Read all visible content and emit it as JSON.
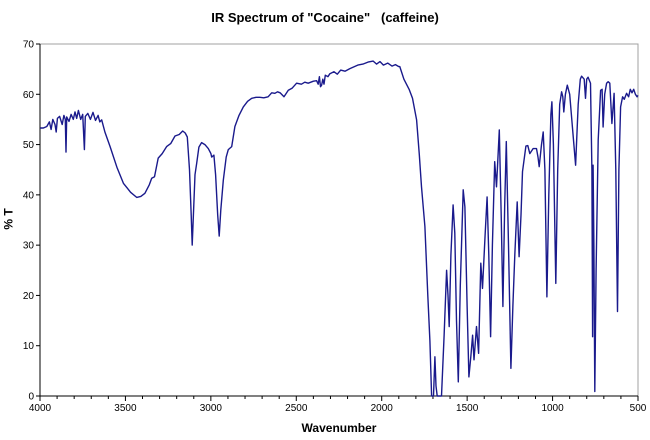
{
  "chart_data": {
    "type": "line",
    "title": "IR Spectrum of \"Cocaine\"   (caffeine)",
    "xlabel": "Wavenumber",
    "ylabel": "% T",
    "xlim": [
      4000,
      500
    ],
    "ylim": [
      0,
      70
    ],
    "x_reversed": true,
    "grid": false,
    "legend": "none",
    "xticks": [
      "4000",
      "3500",
      "3000",
      "2500",
      "2000",
      "1500",
      "1000",
      "500"
    ],
    "yticks": [
      "0",
      "10",
      "20",
      "30",
      "40",
      "50",
      "60",
      "70"
    ],
    "line_color": "#1a1a8c",
    "series": [
      {
        "points": [
          [
            4000,
            53.3
          ],
          [
            3980,
            53.3
          ],
          [
            3960,
            53.6
          ],
          [
            3945,
            54.5
          ],
          [
            3935,
            53
          ],
          [
            3925,
            55
          ],
          [
            3912,
            54
          ],
          [
            3905,
            52.5
          ],
          [
            3898,
            55.2
          ],
          [
            3885,
            55.6
          ],
          [
            3870,
            54
          ],
          [
            3860,
            55.8
          ],
          [
            3852,
            55
          ],
          [
            3848,
            48.5
          ],
          [
            3844,
            55.5
          ],
          [
            3830,
            54.6
          ],
          [
            3818,
            56
          ],
          [
            3805,
            55
          ],
          [
            3795,
            56.5
          ],
          [
            3785,
            55.2
          ],
          [
            3775,
            56.8
          ],
          [
            3762,
            55
          ],
          [
            3750,
            56
          ],
          [
            3740,
            49
          ],
          [
            3735,
            55.6
          ],
          [
            3720,
            56.2
          ],
          [
            3705,
            55
          ],
          [
            3690,
            56.4
          ],
          [
            3675,
            54.8
          ],
          [
            3660,
            55.8
          ],
          [
            3650,
            54.5
          ],
          [
            3639,
            54.9
          ],
          [
            3620,
            52.5
          ],
          [
            3590,
            49.6
          ],
          [
            3550,
            45.5
          ],
          [
            3512,
            42.3
          ],
          [
            3470,
            40.5
          ],
          [
            3434,
            39.5
          ],
          [
            3410,
            39.7
          ],
          [
            3386,
            40.3
          ],
          [
            3360,
            42
          ],
          [
            3346,
            43.3
          ],
          [
            3330,
            43.6
          ],
          [
            3308,
            47.3
          ],
          [
            3285,
            48.2
          ],
          [
            3259,
            49.6
          ],
          [
            3235,
            50.2
          ],
          [
            3210,
            51.7
          ],
          [
            3185,
            52
          ],
          [
            3165,
            52.7
          ],
          [
            3150,
            52.3
          ],
          [
            3138,
            51.5
          ],
          [
            3125,
            45
          ],
          [
            3115,
            36
          ],
          [
            3109,
            30
          ],
          [
            3102,
            36
          ],
          [
            3093,
            44
          ],
          [
            3083,
            46.3
          ],
          [
            3070,
            49.5
          ],
          [
            3054,
            50.4
          ],
          [
            3035,
            50
          ],
          [
            3015,
            49.2
          ],
          [
            3000,
            48.2
          ],
          [
            2995,
            47.5
          ],
          [
            2982,
            47.9
          ],
          [
            2972,
            44
          ],
          [
            2960,
            36
          ],
          [
            2951,
            31.8
          ],
          [
            2942,
            37
          ],
          [
            2927,
            42.9
          ],
          [
            2910,
            47.5
          ],
          [
            2898,
            49
          ],
          [
            2878,
            49.6
          ],
          [
            2859,
            53.6
          ],
          [
            2835,
            55.8
          ],
          [
            2810,
            57.5
          ],
          [
            2785,
            58.6
          ],
          [
            2761,
            59.2
          ],
          [
            2735,
            59.4
          ],
          [
            2713,
            59.4
          ],
          [
            2690,
            59.3
          ],
          [
            2665,
            59.5
          ],
          [
            2644,
            60.3
          ],
          [
            2625,
            60.2
          ],
          [
            2610,
            60.5
          ],
          [
            2595,
            60.3
          ],
          [
            2572,
            59.5
          ],
          [
            2547,
            60.8
          ],
          [
            2525,
            61.2
          ],
          [
            2498,
            62.2
          ],
          [
            2470,
            62
          ],
          [
            2450,
            62.4
          ],
          [
            2430,
            62.2
          ],
          [
            2400,
            62.6
          ],
          [
            2381,
            62.7
          ],
          [
            2372,
            62
          ],
          [
            2365,
            63.5
          ],
          [
            2358,
            61.5
          ],
          [
            2352,
            61.8
          ],
          [
            2345,
            63
          ],
          [
            2338,
            62
          ],
          [
            2330,
            63.8
          ],
          [
            2315,
            63.5
          ],
          [
            2303,
            64.1
          ],
          [
            2280,
            64.5
          ],
          [
            2260,
            64
          ],
          [
            2240,
            64.8
          ],
          [
            2215,
            64.6
          ],
          [
            2186,
            65.1
          ],
          [
            2160,
            65.5
          ],
          [
            2140,
            65.8
          ],
          [
            2110,
            66
          ],
          [
            2080,
            66.4
          ],
          [
            2050,
            66.6
          ],
          [
            2030,
            66
          ],
          [
            2010,
            66.5
          ],
          [
            1990,
            65.8
          ],
          [
            1965,
            66.2
          ],
          [
            1940,
            65.6
          ],
          [
            1920,
            65.9
          ],
          [
            1900,
            65.5
          ],
          [
            1894,
            65.5
          ],
          [
            1870,
            63
          ],
          [
            1840,
            61
          ],
          [
            1820,
            59.2
          ],
          [
            1796,
            54.9
          ],
          [
            1780,
            48
          ],
          [
            1767,
            41.6
          ],
          [
            1747,
            33.7
          ],
          [
            1730,
            20
          ],
          [
            1718,
            11
          ],
          [
            1708,
            0
          ],
          [
            1697,
            0
          ],
          [
            1689,
            7.8
          ],
          [
            1682,
            2
          ],
          [
            1675,
            0
          ],
          [
            1660,
            0
          ],
          [
            1650,
            0
          ],
          [
            1635,
            12
          ],
          [
            1620,
            25
          ],
          [
            1612,
            20
          ],
          [
            1605,
            13.8
          ],
          [
            1595,
            28
          ],
          [
            1582,
            38
          ],
          [
            1572,
            32.4
          ],
          [
            1562,
            15
          ],
          [
            1552,
            2.8
          ],
          [
            1540,
            22
          ],
          [
            1523,
            41
          ],
          [
            1513,
            37.6
          ],
          [
            1500,
            18
          ],
          [
            1490,
            3.8
          ],
          [
            1478,
            8
          ],
          [
            1468,
            12.1
          ],
          [
            1460,
            7.2
          ],
          [
            1445,
            13.8
          ],
          [
            1433,
            8.5
          ],
          [
            1420,
            26.4
          ],
          [
            1410,
            21.4
          ],
          [
            1395,
            32
          ],
          [
            1383,
            39.6
          ],
          [
            1373,
            28
          ],
          [
            1363,
            11.8
          ],
          [
            1352,
            30
          ],
          [
            1339,
            46.6
          ],
          [
            1328,
            41.6
          ],
          [
            1312,
            52.9
          ],
          [
            1300,
            35
          ],
          [
            1291,
            17.8
          ],
          [
            1280,
            38
          ],
          [
            1271,
            50.6
          ],
          [
            1258,
            30
          ],
          [
            1244,
            5.5
          ],
          [
            1232,
            18
          ],
          [
            1221,
            28
          ],
          [
            1207,
            38.6
          ],
          [
            1196,
            27.7
          ],
          [
            1185,
            36
          ],
          [
            1176,
            44.6
          ],
          [
            1156,
            49.7
          ],
          [
            1145,
            49.8
          ],
          [
            1133,
            48.2
          ],
          [
            1114,
            49.2
          ],
          [
            1094,
            49.2
          ],
          [
            1085,
            47.5
          ],
          [
            1078,
            45.6
          ],
          [
            1065,
            50
          ],
          [
            1055,
            52.5
          ],
          [
            1045,
            45
          ],
          [
            1033,
            19.7
          ],
          [
            1022,
            40
          ],
          [
            1010,
            56
          ],
          [
            1004,
            58.5
          ],
          [
            995,
            50
          ],
          [
            981,
            22.4
          ],
          [
            970,
            45
          ],
          [
            958,
            58
          ],
          [
            947,
            60.5
          ],
          [
            940,
            59.5
          ],
          [
            934,
            56.5
          ],
          [
            925,
            60
          ],
          [
            914,
            61.8
          ],
          [
            900,
            60
          ],
          [
            885,
            54
          ],
          [
            865,
            45.9
          ],
          [
            850,
            58
          ],
          [
            838,
            63
          ],
          [
            830,
            63.6
          ],
          [
            815,
            63
          ],
          [
            807,
            59.2
          ],
          [
            800,
            63
          ],
          [
            792,
            63.4
          ],
          [
            778,
            62.2
          ],
          [
            770,
            45
          ],
          [
            766,
            11.8
          ],
          [
            763,
            45.9
          ],
          [
            758,
            30
          ],
          [
            753,
            0.9
          ],
          [
            745,
            25
          ],
          [
            733,
            50.9
          ],
          [
            719,
            60.8
          ],
          [
            710,
            61
          ],
          [
            704,
            53.5
          ],
          [
            695,
            60
          ],
          [
            684,
            62.2
          ],
          [
            675,
            62.5
          ],
          [
            665,
            62.2
          ],
          [
            653,
            54.2
          ],
          [
            640,
            60.2
          ],
          [
            630,
            45
          ],
          [
            620,
            16.8
          ],
          [
            612,
            45
          ],
          [
            602,
            57.5
          ],
          [
            590,
            59.5
          ],
          [
            580,
            59
          ],
          [
            567,
            60.2
          ],
          [
            555,
            59.5
          ],
          [
            545,
            61
          ],
          [
            535,
            60.3
          ],
          [
            525,
            61
          ],
          [
            515,
            60
          ],
          [
            505,
            59.5
          ],
          [
            500,
            59.8
          ]
        ]
      }
    ]
  }
}
